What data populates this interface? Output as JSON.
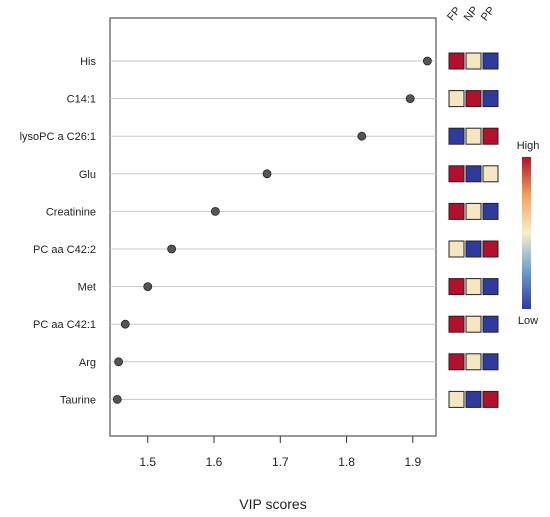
{
  "chart_data": {
    "type": "scatter",
    "title": "",
    "xlabel": "VIP scores",
    "ylabel": "",
    "xlim": [
      1.443,
      1.935
    ],
    "x_ticks": [
      "1.5",
      "1.6",
      "1.7",
      "1.8",
      "1.9"
    ],
    "x_tick_values": [
      1.5,
      1.6,
      1.7,
      1.8,
      1.9
    ],
    "grid": "horizontal",
    "point_color": "#555555",
    "categories": [
      "His",
      "C14:1",
      "lysoPC a C26:1",
      "Glu",
      "Creatinine",
      "PC aa C42:2",
      "Met",
      "PC aa C42:1",
      "Arg",
      "Taurine"
    ],
    "values": [
      1.922,
      1.896,
      1.823,
      1.68,
      1.602,
      1.536,
      1.5,
      1.466,
      1.456,
      1.454
    ],
    "heatmap": {
      "columns": [
        "FP",
        "NP",
        "PP"
      ],
      "levels": [
        [
          "high",
          "mid",
          "low"
        ],
        [
          "mid",
          "high",
          "low"
        ],
        [
          "low",
          "mid",
          "high"
        ],
        [
          "high",
          "low",
          "mid"
        ],
        [
          "high",
          "mid",
          "low"
        ],
        [
          "mid",
          "low",
          "high"
        ],
        [
          "high",
          "mid",
          "low"
        ],
        [
          "high",
          "mid",
          "low"
        ],
        [
          "high",
          "mid",
          "low"
        ],
        [
          "mid",
          "low",
          "high"
        ]
      ],
      "colors": {
        "high": "#b4102b",
        "mid": "#f3e6c1",
        "low": "#2e3a9c"
      }
    },
    "legend": {
      "high_label": "High",
      "low_label": "Low",
      "placement": "right",
      "gradient": [
        "#2e3a9c",
        "#6b9ed0",
        "#f5f0c8",
        "#f6a05a",
        "#b4102b"
      ]
    }
  }
}
